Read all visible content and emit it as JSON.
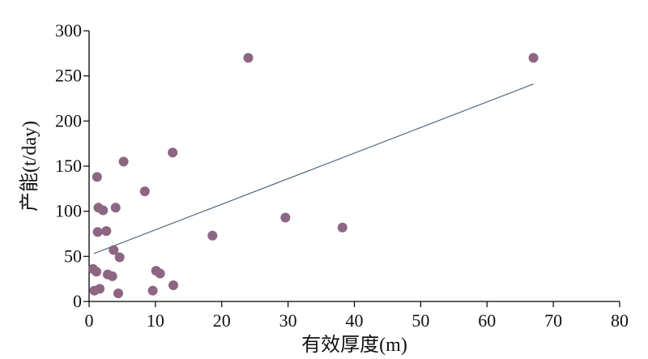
{
  "chart_data": {
    "type": "scatter",
    "title": "",
    "xlabel": "有效厚度(m)",
    "ylabel": "产能(t/day)",
    "xlim": [
      0,
      80
    ],
    "ylim": [
      0,
      300
    ],
    "x_ticks": [
      "0",
      "10",
      "20",
      "30",
      "40",
      "50",
      "60",
      "70",
      "80"
    ],
    "y_ticks": [
      "0",
      "50",
      "100",
      "150",
      "200",
      "250",
      "300"
    ],
    "grid": false,
    "legend": "none",
    "colors": {
      "points": "#8c6682",
      "trendline": "#4f6a80",
      "axis": "#000000"
    },
    "series": [
      {
        "points": [
          [
            0.6,
            36
          ],
          [
            0.8,
            12
          ],
          [
            1.1,
            33
          ],
          [
            1.2,
            138
          ],
          [
            1.3,
            77
          ],
          [
            1.4,
            104
          ],
          [
            1.6,
            14
          ],
          [
            2.1,
            101
          ],
          [
            2.6,
            78
          ],
          [
            2.8,
            30
          ],
          [
            3.5,
            28
          ],
          [
            3.7,
            57
          ],
          [
            4.0,
            104
          ],
          [
            4.4,
            9
          ],
          [
            4.6,
            49
          ],
          [
            5.2,
            155
          ],
          [
            8.4,
            122
          ],
          [
            9.6,
            12
          ],
          [
            10.1,
            34
          ],
          [
            10.7,
            31
          ],
          [
            12.6,
            165
          ],
          [
            12.7,
            18
          ],
          [
            18.6,
            73
          ],
          [
            24.0,
            270
          ],
          [
            29.6,
            93
          ],
          [
            38.2,
            82
          ],
          [
            67.0,
            270
          ]
        ]
      }
    ],
    "trendline": {
      "x": [
        0.7,
        67.0
      ],
      "y": [
        53,
        241
      ]
    }
  }
}
